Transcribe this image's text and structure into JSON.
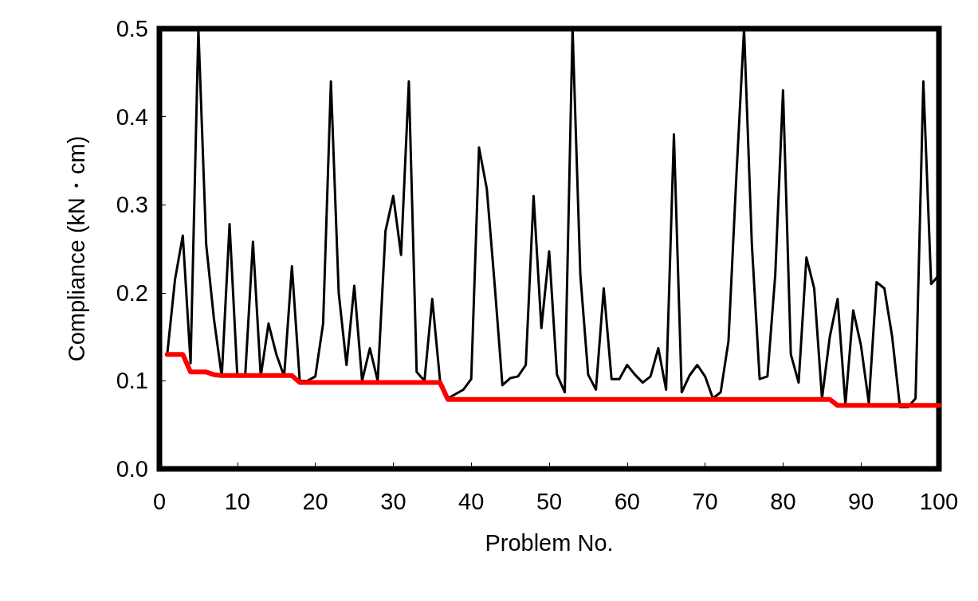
{
  "chart_data": {
    "type": "line",
    "xlabel": "Problem No.",
    "ylabel": "Compliance (kN・cm)",
    "xlim": [
      0,
      100
    ],
    "xticks": [
      0,
      10,
      20,
      30,
      40,
      50,
      60,
      70,
      80,
      90,
      100
    ],
    "ylim": [
      0,
      0.5
    ],
    "yticks": [
      {
        "value": 0,
        "label": "0.0"
      },
      {
        "value": 0.1,
        "label": "0.1"
      },
      {
        "value": 0.2,
        "label": "0.2"
      },
      {
        "value": 0.3,
        "label": "0.3"
      },
      {
        "value": 0.4,
        "label": "0.4"
      },
      {
        "value": 0.5,
        "label": "0.5"
      }
    ],
    "grid": false,
    "marker": "none",
    "line_style": "solid",
    "x": [
      1,
      2,
      3,
      4,
      5,
      6,
      7,
      8,
      9,
      10,
      11,
      12,
      13,
      14,
      15,
      16,
      17,
      18,
      19,
      20,
      21,
      22,
      23,
      24,
      25,
      26,
      27,
      28,
      29,
      30,
      31,
      32,
      33,
      34,
      35,
      36,
      37,
      38,
      39,
      40,
      41,
      42,
      43,
      44,
      45,
      46,
      47,
      48,
      49,
      50,
      51,
      52,
      53,
      54,
      55,
      56,
      57,
      58,
      59,
      60,
      61,
      62,
      63,
      64,
      65,
      66,
      67,
      68,
      69,
      70,
      71,
      72,
      73,
      74,
      75,
      76,
      77,
      78,
      79,
      80,
      81,
      82,
      83,
      84,
      85,
      86,
      87,
      88,
      89,
      90,
      91,
      92,
      93,
      94,
      95,
      96,
      97,
      98,
      99,
      100
    ],
    "series": [
      {
        "color": "#000000",
        "values": [
          0.13,
          0.215,
          0.265,
          0.12,
          0.5,
          0.255,
          0.17,
          0.105,
          0.278,
          0.105,
          0.105,
          0.258,
          0.105,
          0.165,
          0.13,
          0.105,
          0.23,
          0.1,
          0.1,
          0.105,
          0.165,
          0.44,
          0.2,
          0.118,
          0.208,
          0.1,
          0.137,
          0.1,
          0.27,
          0.31,
          0.243,
          0.44,
          0.11,
          0.1,
          0.193,
          0.1,
          0.08,
          0.085,
          0.09,
          0.102,
          0.365,
          0.318,
          0.21,
          0.095,
          0.103,
          0.105,
          0.118,
          0.31,
          0.16,
          0.247,
          0.107,
          0.087,
          0.5,
          0.22,
          0.107,
          0.09,
          0.205,
          0.102,
          0.102,
          0.118,
          0.107,
          0.098,
          0.105,
          0.137,
          0.09,
          0.38,
          0.087,
          0.106,
          0.118,
          0.105,
          0.08,
          0.087,
          0.145,
          0.33,
          0.5,
          0.255,
          0.102,
          0.105,
          0.22,
          0.43,
          0.13,
          0.098,
          0.24,
          0.205,
          0.08,
          0.15,
          0.193,
          0.073,
          0.18,
          0.14,
          0.075,
          0.212,
          0.205,
          0.15,
          0.07,
          0.07,
          0.08,
          0.44,
          0.21,
          0.22
        ]
      },
      {
        "color": "#ff0000",
        "values": [
          0.13,
          0.13,
          0.13,
          0.11,
          0.11,
          0.11,
          0.107,
          0.106,
          0.106,
          0.106,
          0.106,
          0.106,
          0.106,
          0.106,
          0.106,
          0.106,
          0.106,
          0.098,
          0.098,
          0.098,
          0.098,
          0.098,
          0.098,
          0.098,
          0.098,
          0.098,
          0.098,
          0.098,
          0.098,
          0.098,
          0.098,
          0.098,
          0.098,
          0.098,
          0.098,
          0.098,
          0.079,
          0.079,
          0.079,
          0.079,
          0.079,
          0.079,
          0.079,
          0.079,
          0.079,
          0.079,
          0.079,
          0.079,
          0.079,
          0.079,
          0.079,
          0.079,
          0.079,
          0.079,
          0.079,
          0.079,
          0.079,
          0.079,
          0.079,
          0.079,
          0.079,
          0.079,
          0.079,
          0.079,
          0.079,
          0.079,
          0.079,
          0.079,
          0.079,
          0.079,
          0.079,
          0.079,
          0.079,
          0.079,
          0.079,
          0.079,
          0.079,
          0.079,
          0.079,
          0.079,
          0.079,
          0.079,
          0.079,
          0.079,
          0.079,
          0.079,
          0.072,
          0.072,
          0.072,
          0.072,
          0.072,
          0.072,
          0.072,
          0.072,
          0.072,
          0.072,
          0.072,
          0.072,
          0.072,
          0.072
        ]
      }
    ]
  }
}
